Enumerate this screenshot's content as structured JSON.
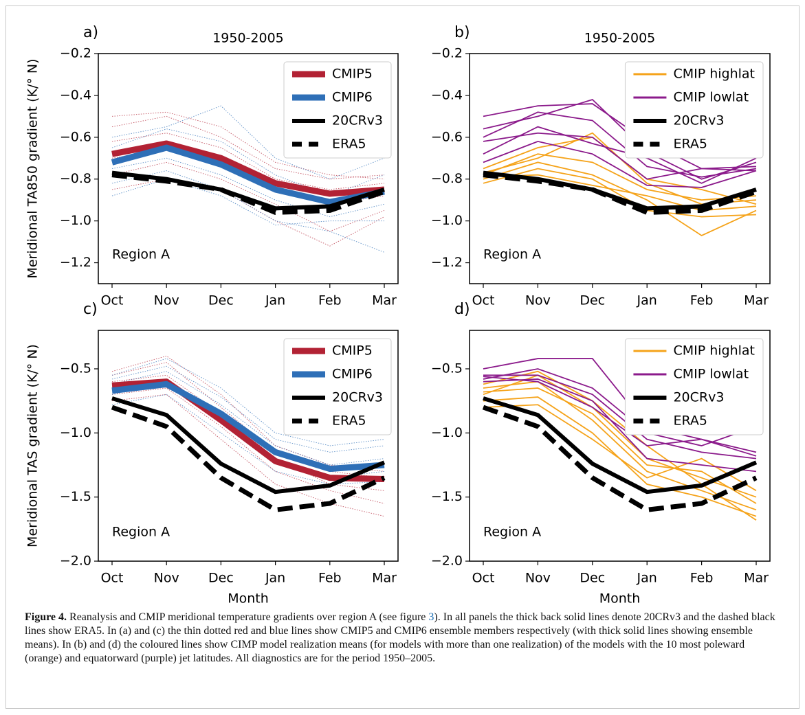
{
  "chart_data": [
    {
      "type": "line",
      "panel_label": "a)",
      "title": "1950-2005",
      "ylabel": "Meridional TA850 gradient (K/° N)",
      "annotation": "Region A",
      "categories": [
        "Oct",
        "Nov",
        "Dec",
        "Jan",
        "Feb",
        "Mar"
      ],
      "ylim": [
        -1.3,
        -0.2
      ],
      "yticks": [
        {
          "value": -0.2,
          "label": "−0.2"
        },
        {
          "value": -0.4,
          "label": "−0.4"
        },
        {
          "value": -0.6,
          "label": "−0.6"
        },
        {
          "value": -0.8,
          "label": "−0.8"
        },
        {
          "value": -1.0,
          "label": "−1.0"
        },
        {
          "value": -1.2,
          "label": "−1.2"
        }
      ],
      "legend": "upper right",
      "ensemble": [
        {
          "color": "#b22234",
          "linestyle": "dotted",
          "values": [
            -0.55,
            -0.5,
            -0.6,
            -0.75,
            -0.8,
            -0.78
          ]
        },
        {
          "color": "#b22234",
          "linestyle": "dotted",
          "values": [
            -0.62,
            -0.58,
            -0.65,
            -0.8,
            -0.85,
            -0.82
          ]
        },
        {
          "color": "#b22234",
          "linestyle": "dotted",
          "values": [
            -0.7,
            -0.66,
            -0.72,
            -0.86,
            -0.92,
            -0.88
          ]
        },
        {
          "color": "#b22234",
          "linestyle": "dotted",
          "values": [
            -0.78,
            -0.72,
            -0.8,
            -0.92,
            -1.05,
            -0.95
          ]
        },
        {
          "color": "#b22234",
          "linestyle": "dotted",
          "values": [
            -0.5,
            -0.48,
            -0.55,
            -0.72,
            -0.78,
            -0.8
          ]
        },
        {
          "color": "#b22234",
          "linestyle": "dotted",
          "values": [
            -0.85,
            -0.8,
            -0.85,
            -1.0,
            -1.12,
            -0.98
          ]
        },
        {
          "color": "#2e6fb7",
          "linestyle": "dotted",
          "values": [
            -0.6,
            -0.55,
            -0.45,
            -0.7,
            -0.8,
            -0.7
          ]
        },
        {
          "color": "#2e6fb7",
          "linestyle": "dotted",
          "values": [
            -0.68,
            -0.62,
            -0.7,
            -0.85,
            -0.9,
            -0.85
          ]
        },
        {
          "color": "#2e6fb7",
          "linestyle": "dotted",
          "values": [
            -0.75,
            -0.7,
            -0.78,
            -0.9,
            -0.98,
            -0.92
          ]
        },
        {
          "color": "#2e6fb7",
          "linestyle": "dotted",
          "values": [
            -0.82,
            -0.76,
            -0.85,
            -1.0,
            -1.05,
            -1.15
          ]
        },
        {
          "color": "#2e6fb7",
          "linestyle": "dotted",
          "values": [
            -0.65,
            -0.56,
            -0.62,
            -0.78,
            -0.88,
            -0.78
          ]
        },
        {
          "color": "#2e6fb7",
          "linestyle": "dotted",
          "values": [
            -0.88,
            -0.8,
            -0.88,
            -1.02,
            -1.0,
            -1.0
          ]
        }
      ],
      "series": [
        {
          "name": "CMIP5",
          "color": "#b22234",
          "linestyle": "solid",
          "values": [
            -0.68,
            -0.63,
            -0.7,
            -0.82,
            -0.87,
            -0.85
          ]
        },
        {
          "name": "CMIP6",
          "color": "#2e6fb7",
          "linestyle": "solid",
          "values": [
            -0.72,
            -0.65,
            -0.73,
            -0.85,
            -0.91,
            -0.86
          ]
        },
        {
          "name": "20CRv3",
          "color": "#000000",
          "linestyle": "solid",
          "values": [
            -0.77,
            -0.8,
            -0.85,
            -0.94,
            -0.93,
            -0.85
          ]
        },
        {
          "name": "ERA5",
          "color": "#000000",
          "linestyle": "dashed",
          "values": [
            -0.78,
            -0.81,
            -0.85,
            -0.96,
            -0.95,
            -0.86
          ]
        }
      ]
    },
    {
      "type": "line",
      "panel_label": "b)",
      "title": "1950-2005",
      "annotation": "Region A",
      "categories": [
        "Oct",
        "Nov",
        "Dec",
        "Jan",
        "Feb",
        "Mar"
      ],
      "ylim": [
        -1.3,
        -0.2
      ],
      "yticks": [
        {
          "value": -0.2,
          "label": "−0.2"
        },
        {
          "value": -0.4,
          "label": "−0.4"
        },
        {
          "value": -0.6,
          "label": "−0.6"
        },
        {
          "value": -0.8,
          "label": "−0.8"
        },
        {
          "value": -1.0,
          "label": "−1.0"
        },
        {
          "value": -1.2,
          "label": "−1.2"
        }
      ],
      "legend": "upper right",
      "ensemble": [
        {
          "color": "#f5a31a",
          "linestyle": "solid",
          "values": [
            -0.78,
            -0.68,
            -0.72,
            -0.85,
            -0.9,
            -0.88
          ]
        },
        {
          "color": "#f5a31a",
          "linestyle": "solid",
          "values": [
            -0.8,
            -0.72,
            -0.78,
            -0.9,
            -1.07,
            -0.95
          ]
        },
        {
          "color": "#f5a31a",
          "linestyle": "solid",
          "values": [
            -0.75,
            -0.65,
            -0.6,
            -0.8,
            -0.85,
            -0.92
          ]
        },
        {
          "color": "#f5a31a",
          "linestyle": "solid",
          "values": [
            -0.82,
            -0.75,
            -0.8,
            -0.95,
            -0.98,
            -0.97
          ]
        },
        {
          "color": "#f5a31a",
          "linestyle": "solid",
          "values": [
            -0.77,
            -0.7,
            -0.58,
            -0.82,
            -0.92,
            -0.9
          ]
        },
        {
          "color": "#f5a31a",
          "linestyle": "solid",
          "values": [
            -0.79,
            -0.78,
            -0.83,
            -0.88,
            -0.95,
            -0.93
          ]
        },
        {
          "color": "#8b1a8b",
          "linestyle": "solid",
          "values": [
            -0.5,
            -0.45,
            -0.44,
            -0.62,
            -0.75,
            -0.76
          ]
        },
        {
          "color": "#8b1a8b",
          "linestyle": "solid",
          "values": [
            -0.56,
            -0.5,
            -0.42,
            -0.67,
            -0.8,
            -0.72
          ]
        },
        {
          "color": "#8b1a8b",
          "linestyle": "solid",
          "values": [
            -0.62,
            -0.58,
            -0.6,
            -0.8,
            -0.75,
            -0.74
          ]
        },
        {
          "color": "#8b1a8b",
          "linestyle": "solid",
          "values": [
            -0.68,
            -0.55,
            -0.63,
            -0.7,
            -0.82,
            -0.7
          ]
        },
        {
          "color": "#8b1a8b",
          "linestyle": "solid",
          "values": [
            -0.6,
            -0.48,
            -0.52,
            -0.74,
            -0.79,
            -0.75
          ]
        },
        {
          "color": "#8b1a8b",
          "linestyle": "solid",
          "values": [
            -0.72,
            -0.62,
            -0.68,
            -0.83,
            -0.84,
            -0.76
          ]
        }
      ],
      "series": [
        {
          "name": "CMIP highlat",
          "color": "#f5a31a",
          "linestyle": "thin",
          "values": null
        },
        {
          "name": "CMIP lowlat",
          "color": "#8b1a8b",
          "linestyle": "thin",
          "values": null
        },
        {
          "name": "20CRv3",
          "color": "#000000",
          "linestyle": "solid",
          "values": [
            -0.77,
            -0.8,
            -0.85,
            -0.94,
            -0.93,
            -0.85
          ]
        },
        {
          "name": "ERA5",
          "color": "#000000",
          "linestyle": "dashed",
          "values": [
            -0.78,
            -0.81,
            -0.85,
            -0.96,
            -0.95,
            -0.86
          ]
        }
      ]
    },
    {
      "type": "line",
      "panel_label": "c)",
      "ylabel": "Meridional TAS gradient (K/° N)",
      "xlabel": "Month",
      "annotation": "Region A",
      "categories": [
        "Oct",
        "Nov",
        "Dec",
        "Jan",
        "Feb",
        "Mar"
      ],
      "ylim": [
        -2.0,
        -0.2
      ],
      "yticks": [
        {
          "value": -0.5,
          "label": "−0.5"
        },
        {
          "value": -1.0,
          "label": "−1.0"
        },
        {
          "value": -1.5,
          "label": "−1.5"
        },
        {
          "value": -2.0,
          "label": "−2.0"
        }
      ],
      "legend": "upper right",
      "ensemble": [
        {
          "color": "#b22234",
          "linestyle": "dotted",
          "values": [
            -0.52,
            -0.4,
            -0.7,
            -1.1,
            -1.25,
            -1.3
          ]
        },
        {
          "color": "#b22234",
          "linestyle": "dotted",
          "values": [
            -0.6,
            -0.55,
            -0.85,
            -1.2,
            -1.4,
            -1.45
          ]
        },
        {
          "color": "#b22234",
          "linestyle": "dotted",
          "values": [
            -0.7,
            -0.65,
            -0.95,
            -1.3,
            -1.45,
            -1.55
          ]
        },
        {
          "color": "#b22234",
          "linestyle": "dotted",
          "values": [
            -0.75,
            -0.7,
            -1.05,
            -1.4,
            -1.55,
            -1.65
          ]
        },
        {
          "color": "#b22234",
          "linestyle": "dotted",
          "values": [
            -0.55,
            -0.45,
            -0.8,
            -1.15,
            -1.3,
            -1.35
          ]
        },
        {
          "color": "#2e6fb7",
          "linestyle": "dotted",
          "values": [
            -0.55,
            -0.42,
            -0.65,
            -1.0,
            -1.1,
            -1.05
          ]
        },
        {
          "color": "#2e6fb7",
          "linestyle": "dotted",
          "values": [
            -0.62,
            -0.52,
            -0.78,
            -1.1,
            -1.25,
            -1.2
          ]
        },
        {
          "color": "#2e6fb7",
          "linestyle": "dotted",
          "values": [
            -0.7,
            -0.6,
            -0.9,
            -1.2,
            -1.35,
            -1.3
          ]
        },
        {
          "color": "#2e6fb7",
          "linestyle": "dotted",
          "values": [
            -0.78,
            -0.7,
            -1.0,
            -1.3,
            -1.4,
            -1.38
          ]
        },
        {
          "color": "#2e6fb7",
          "linestyle": "dotted",
          "values": [
            -0.58,
            -0.48,
            -0.72,
            -1.05,
            -1.15,
            -1.1
          ]
        }
      ],
      "series": [
        {
          "name": "CMIP5",
          "color": "#b22234",
          "linestyle": "solid",
          "values": [
            -0.63,
            -0.6,
            -0.9,
            -1.22,
            -1.35,
            -1.36
          ]
        },
        {
          "name": "CMIP6",
          "color": "#2e6fb7",
          "linestyle": "solid",
          "values": [
            -0.67,
            -0.62,
            -0.85,
            -1.15,
            -1.28,
            -1.25
          ]
        },
        {
          "name": "20CRv3",
          "color": "#000000",
          "linestyle": "solid",
          "values": [
            -0.73,
            -0.86,
            -1.24,
            -1.46,
            -1.41,
            -1.23
          ]
        },
        {
          "name": "ERA5",
          "color": "#000000",
          "linestyle": "dashed",
          "values": [
            -0.8,
            -0.95,
            -1.35,
            -1.6,
            -1.55,
            -1.35
          ]
        }
      ]
    },
    {
      "type": "line",
      "panel_label": "d)",
      "xlabel": "Month",
      "annotation": "Region A",
      "categories": [
        "Oct",
        "Nov",
        "Dec",
        "Jan",
        "Feb",
        "Mar"
      ],
      "ylim": [
        -2.0,
        -0.2
      ],
      "yticks": [
        {
          "value": -0.5,
          "label": "−0.5"
        },
        {
          "value": -1.0,
          "label": "−1.0"
        },
        {
          "value": -1.5,
          "label": "−1.5"
        },
        {
          "value": -2.0,
          "label": "−2.0"
        }
      ],
      "legend": "upper right",
      "ensemble": [
        {
          "color": "#f5a31a",
          "linestyle": "solid",
          "values": [
            -0.65,
            -0.6,
            -0.9,
            -1.3,
            -1.45,
            -1.6
          ]
        },
        {
          "color": "#f5a31a",
          "linestyle": "solid",
          "values": [
            -0.7,
            -0.55,
            -0.8,
            -1.2,
            -1.35,
            -1.5
          ]
        },
        {
          "color": "#f5a31a",
          "linestyle": "solid",
          "values": [
            -0.75,
            -0.72,
            -1.0,
            -1.4,
            -1.5,
            -1.65
          ]
        },
        {
          "color": "#f5a31a",
          "linestyle": "solid",
          "values": [
            -0.68,
            -0.65,
            -0.85,
            -1.25,
            -1.3,
            -1.55
          ]
        },
        {
          "color": "#f5a31a",
          "linestyle": "solid",
          "values": [
            -0.8,
            -0.78,
            -1.05,
            -1.35,
            -1.2,
            -1.45
          ]
        },
        {
          "color": "#f5a31a",
          "linestyle": "solid",
          "values": [
            -0.62,
            -0.52,
            -0.75,
            -1.1,
            -1.4,
            -1.68
          ]
        },
        {
          "color": "#8b1a8b",
          "linestyle": "solid",
          "values": [
            -0.5,
            -0.42,
            -0.42,
            -0.95,
            -1.05,
            -1.15
          ]
        },
        {
          "color": "#8b1a8b",
          "linestyle": "solid",
          "values": [
            -0.55,
            -0.55,
            -0.7,
            -1.05,
            -1.15,
            -1.2
          ]
        },
        {
          "color": "#8b1a8b",
          "linestyle": "solid",
          "values": [
            -0.58,
            -0.5,
            -0.65,
            -1.0,
            -1.1,
            -0.95
          ]
        },
        {
          "color": "#8b1a8b",
          "linestyle": "solid",
          "values": [
            -0.56,
            -0.6,
            -0.8,
            -1.1,
            -1.05,
            -1.18
          ]
        },
        {
          "color": "#8b1a8b",
          "linestyle": "solid",
          "values": [
            -0.6,
            -0.58,
            -0.75,
            -1.2,
            -1.25,
            -1.3
          ]
        }
      ],
      "series": [
        {
          "name": "CMIP highlat",
          "color": "#f5a31a",
          "linestyle": "thin",
          "values": null
        },
        {
          "name": "CMIP lowlat",
          "color": "#8b1a8b",
          "linestyle": "thin",
          "values": null
        },
        {
          "name": "20CRv3",
          "color": "#000000",
          "linestyle": "solid",
          "values": [
            -0.73,
            -0.86,
            -1.24,
            -1.46,
            -1.41,
            -1.23
          ]
        },
        {
          "name": "ERA5",
          "color": "#000000",
          "linestyle": "dashed",
          "values": [
            -0.8,
            -0.95,
            -1.35,
            -1.6,
            -1.55,
            -1.35
          ]
        }
      ]
    }
  ],
  "caption": {
    "label": "Figure 4.",
    "text_before": "Reanalysis and CMIP meridional temperature gradients over region A (see figure ",
    "reference": "3",
    "text_after": "). In all panels the thick back solid lines denote 20CRv3 and the dashed black lines show ERA5. In (a) and (c) the thin dotted red and blue lines show CMIP5 and CMIP6 ensemble members respectively (with thick solid lines showing ensemble means). In (b) and (d) the coloured lines show CIMP model realization means (for models with more than one realization) of the models with the 10 most poleward (orange) and equatorward (purple) jet latitudes. All diagnostics are for the period 1950–2005."
  }
}
